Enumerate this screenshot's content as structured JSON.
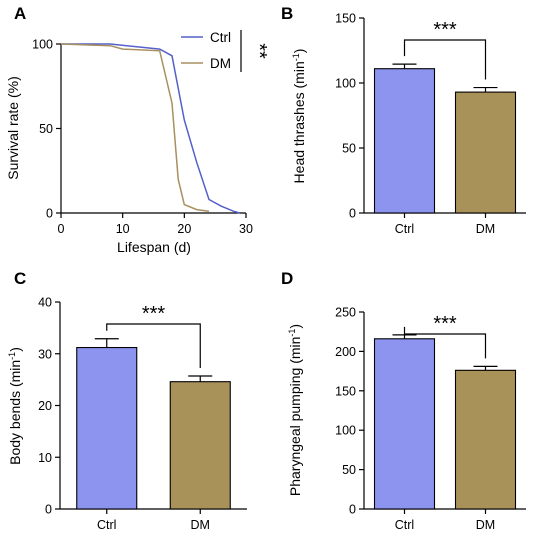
{
  "chart_data": [
    {
      "panel": "A",
      "type": "line",
      "xlabel": "Lifespan (d)",
      "ylabel": "Survival rate (%)",
      "xlim": [
        0,
        30
      ],
      "ylim": [
        0,
        100
      ],
      "xticks": [
        0,
        10,
        20,
        30
      ],
      "yticks": [
        0,
        50,
        100
      ],
      "legend_position": "top-right",
      "series": [
        {
          "name": "Ctrl",
          "color": "#5560c8",
          "x": [
            0,
            8,
            16,
            18,
            20,
            22,
            24,
            26,
            28,
            29
          ],
          "y": [
            100,
            100,
            97,
            93,
            55,
            30,
            8,
            4,
            1,
            0
          ]
        },
        {
          "name": "DM",
          "color": "#a89060",
          "x": [
            0,
            8,
            10,
            16,
            18,
            19,
            20,
            22,
            24
          ],
          "y": [
            100,
            99,
            97,
            96,
            65,
            20,
            5,
            2,
            1
          ]
        }
      ],
      "significance": "**"
    },
    {
      "panel": "B",
      "type": "bar",
      "ylabel": "Head thrashes (min⁻¹)",
      "ylim": [
        0,
        150
      ],
      "yticks": [
        0,
        50,
        100,
        150
      ],
      "categories": [
        "Ctrl",
        "DM"
      ],
      "values": [
        111,
        93
      ],
      "errors": [
        3.5,
        3.5
      ],
      "colors": [
        "#8c94f0",
        "#a8925a"
      ],
      "significance": "***"
    },
    {
      "panel": "C",
      "type": "bar",
      "ylabel": "Body bends (min⁻¹)",
      "ylim": [
        0,
        40
      ],
      "yticks": [
        0,
        10,
        20,
        30,
        40
      ],
      "categories": [
        "Ctrl",
        "DM"
      ],
      "values": [
        31.2,
        24.6
      ],
      "errors": [
        1.7,
        1.1
      ],
      "colors": [
        "#8c94f0",
        "#a8925a"
      ],
      "significance": "***"
    },
    {
      "panel": "D",
      "type": "bar",
      "ylabel": "Pharyngeal pumping (min⁻¹)",
      "ylim": [
        0,
        250
      ],
      "yticks": [
        0,
        50,
        100,
        150,
        200,
        250
      ],
      "categories": [
        "Ctrl",
        "DM"
      ],
      "values": [
        216,
        176
      ],
      "errors": [
        5,
        5
      ],
      "colors": [
        "#8c94f0",
        "#a8925a"
      ],
      "significance": "***"
    }
  ]
}
